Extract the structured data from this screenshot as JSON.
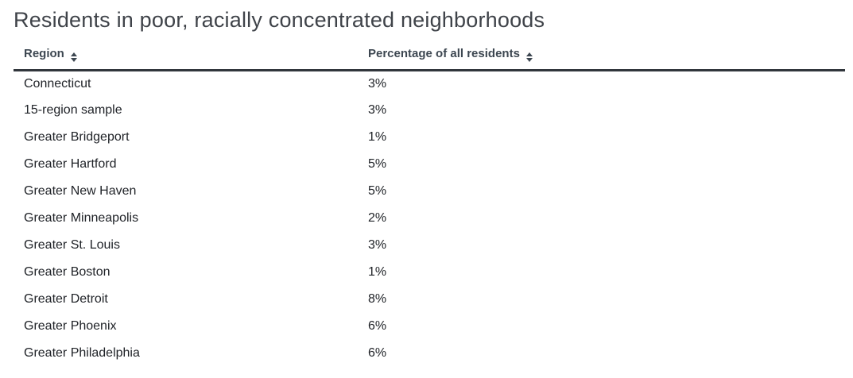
{
  "title": "Residents in poor, racially concentrated neighborhoods",
  "table": {
    "columns": [
      {
        "label": "Region",
        "sortable": true,
        "icon": "sort-icon"
      },
      {
        "label": "Percentage of all residents",
        "sortable": true,
        "icon": "sort-icon"
      }
    ],
    "rows": [
      {
        "region": "Connecticut",
        "value": "3%"
      },
      {
        "region": "15-region sample",
        "value": "3%"
      },
      {
        "region": "Greater Bridgeport",
        "value": "1%"
      },
      {
        "region": "Greater Hartford",
        "value": "5%"
      },
      {
        "region": "Greater New Haven",
        "value": "5%"
      },
      {
        "region": "Greater Minneapolis",
        "value": "2%"
      },
      {
        "region": "Greater St. Louis",
        "value": "3%"
      },
      {
        "region": "Greater Boston",
        "value": "1%"
      },
      {
        "region": "Greater Detroit",
        "value": "8%"
      },
      {
        "region": "Greater Phoenix",
        "value": "6%"
      },
      {
        "region": "Greater Philadelphia",
        "value": "6%"
      }
    ]
  },
  "chart_data": {
    "type": "table",
    "title": "Residents in poor, racially concentrated neighborhoods",
    "columns": [
      "Region",
      "Percentage of all residents"
    ],
    "categories": [
      "Connecticut",
      "15-region sample",
      "Greater Bridgeport",
      "Greater Hartford",
      "Greater New Haven",
      "Greater Minneapolis",
      "Greater St. Louis",
      "Greater Boston",
      "Greater Detroit",
      "Greater Phoenix",
      "Greater Philadelphia"
    ],
    "values": [
      3,
      3,
      1,
      5,
      5,
      2,
      3,
      1,
      8,
      6,
      6
    ],
    "value_unit": "%",
    "sortable_columns": true
  },
  "colors": {
    "title_text": "#3f4349",
    "header_text": "#3d4751",
    "row_text": "#202328",
    "header_rule": "#31363c",
    "background": "#ffffff"
  }
}
